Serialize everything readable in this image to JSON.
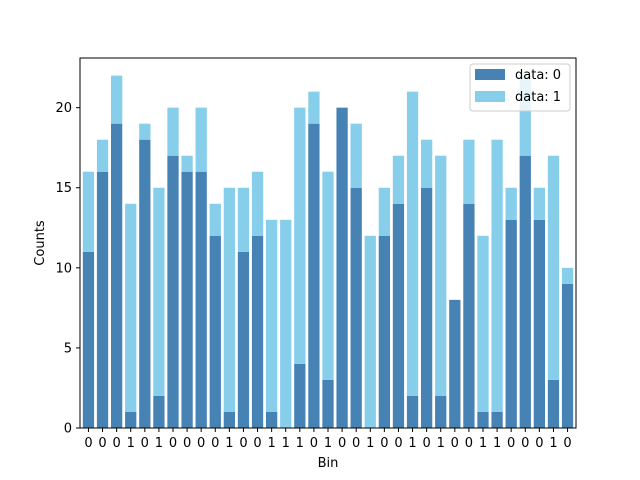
{
  "chart_data": {
    "type": "bar",
    "stacked": true,
    "title": "",
    "xlabel": "Bin",
    "ylabel": "Counts",
    "ylim": [
      0,
      23.1
    ],
    "yticks": [
      0,
      5,
      10,
      15,
      20
    ],
    "categories": [
      "0",
      "0",
      "0",
      "1",
      "0",
      "1",
      "0",
      "0",
      "0",
      "0",
      "1",
      "0",
      "0",
      "1",
      "1",
      "1",
      "0",
      "1",
      "0",
      "0",
      "1",
      "0",
      "0",
      "1",
      "0",
      "1",
      "0",
      "0",
      "1",
      "1",
      "0",
      "0",
      "0",
      "1",
      "0"
    ],
    "series": [
      {
        "name": "data: 0",
        "color": "#4682b4",
        "values": [
          11,
          16,
          19,
          1,
          18,
          2,
          17,
          16,
          16,
          12,
          1,
          11,
          12,
          1,
          0,
          4,
          19,
          3,
          20,
          15,
          0,
          12,
          14,
          2,
          15,
          2,
          8,
          14,
          1,
          1,
          13,
          17,
          13,
          3,
          9
        ]
      },
      {
        "name": "data: 1",
        "color": "#87ceeb",
        "values": [
          5,
          2,
          3,
          13,
          1,
          13,
          3,
          1,
          4,
          2,
          14,
          4,
          4,
          12,
          13,
          16,
          2,
          13,
          0,
          4,
          12,
          3,
          3,
          19,
          3,
          15,
          0,
          4,
          11,
          17,
          2,
          5,
          2,
          14,
          1
        ]
      }
    ],
    "legend": {
      "position": "top-right",
      "entries": [
        "data: 0",
        "data: 1"
      ]
    },
    "grid": false
  }
}
